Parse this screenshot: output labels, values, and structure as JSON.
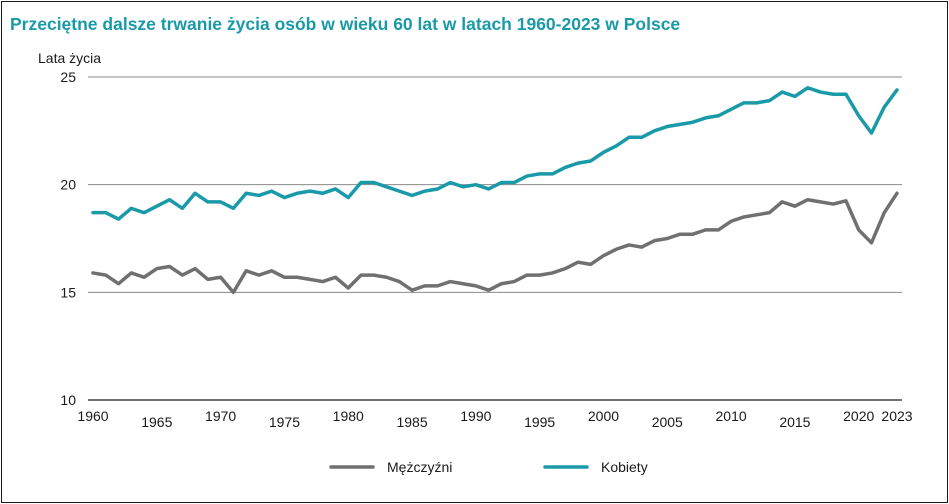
{
  "chart_data": {
    "type": "line",
    "title": "Przeciętne dalsze trwanie życia osób w wieku 60 lat w latach 1960-2023 w Polsce",
    "ylabel": "Lata życia",
    "xlabel": "",
    "ylim": [
      10,
      25
    ],
    "xlim": [
      1960,
      2023
    ],
    "y_ticks": [
      "10",
      "15",
      "20",
      "25"
    ],
    "x_ticks_upper": [
      "1960",
      "1970",
      "1980",
      "1990",
      "2000",
      "2010",
      "2020",
      "2023"
    ],
    "x_ticks_lower": [
      "1965",
      "1975",
      "1985",
      "1995",
      "2005",
      "2015"
    ],
    "grid": "horizontal",
    "legend_position": "bottom",
    "x": [
      1960,
      1961,
      1962,
      1963,
      1964,
      1965,
      1966,
      1967,
      1968,
      1969,
      1970,
      1971,
      1972,
      1973,
      1974,
      1975,
      1976,
      1977,
      1978,
      1979,
      1980,
      1981,
      1982,
      1983,
      1984,
      1985,
      1986,
      1987,
      1988,
      1989,
      1990,
      1991,
      1992,
      1993,
      1994,
      1995,
      1996,
      1997,
      1998,
      1999,
      2000,
      2001,
      2002,
      2003,
      2004,
      2005,
      2006,
      2007,
      2008,
      2009,
      2010,
      2011,
      2012,
      2013,
      2014,
      2015,
      2016,
      2017,
      2018,
      2019,
      2020,
      2021,
      2022,
      2023
    ],
    "series": [
      {
        "name": "Mężczyźni",
        "color": "#707070",
        "values": [
          15.9,
          15.8,
          15.4,
          15.9,
          15.7,
          16.1,
          16.2,
          15.8,
          16.1,
          15.6,
          15.7,
          15.0,
          16.0,
          15.8,
          16.0,
          15.7,
          15.7,
          15.6,
          15.5,
          15.7,
          15.2,
          15.8,
          15.8,
          15.7,
          15.5,
          15.1,
          15.3,
          15.3,
          15.5,
          15.4,
          15.3,
          15.1,
          15.4,
          15.5,
          15.8,
          15.8,
          15.9,
          16.1,
          16.4,
          16.3,
          16.7,
          17.0,
          17.2,
          17.1,
          17.4,
          17.5,
          17.7,
          17.7,
          17.9,
          17.9,
          18.3,
          18.5,
          18.6,
          18.7,
          19.2,
          19.0,
          19.3,
          19.2,
          19.1,
          19.25,
          17.9,
          17.3,
          18.7,
          19.6
        ]
      },
      {
        "name": "Kobiety",
        "color": "#1a9aa8",
        "values": [
          18.7,
          18.7,
          18.4,
          18.9,
          18.7,
          19.0,
          19.3,
          18.9,
          19.6,
          19.2,
          19.2,
          18.9,
          19.6,
          19.5,
          19.7,
          19.4,
          19.6,
          19.7,
          19.6,
          19.8,
          19.4,
          20.1,
          20.1,
          19.9,
          19.7,
          19.5,
          19.7,
          19.8,
          20.1,
          19.9,
          20.0,
          19.8,
          20.1,
          20.1,
          20.4,
          20.5,
          20.5,
          20.8,
          21.0,
          21.1,
          21.5,
          21.8,
          22.2,
          22.2,
          22.5,
          22.7,
          22.8,
          22.9,
          23.1,
          23.2,
          23.5,
          23.8,
          23.8,
          23.9,
          24.3,
          24.1,
          24.5,
          24.3,
          24.2,
          24.2,
          23.2,
          22.4,
          23.6,
          24.4
        ]
      }
    ]
  }
}
